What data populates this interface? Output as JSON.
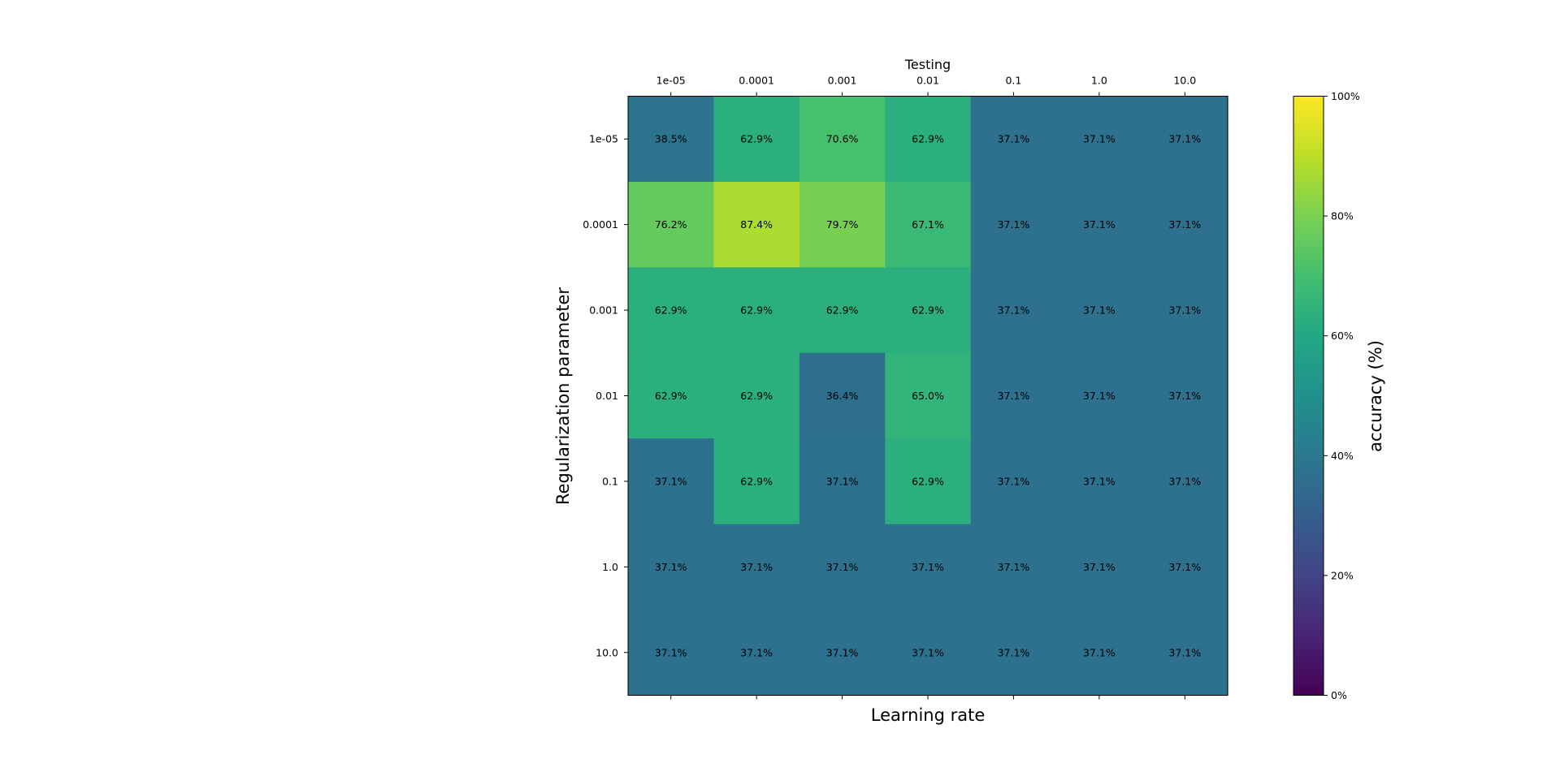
{
  "chart_data": {
    "type": "heatmap",
    "title": "Testing",
    "xlabel": "Learning rate",
    "ylabel": "Regularization parameter",
    "x_categories": [
      "1e-05",
      "0.0001",
      "0.001",
      "0.01",
      "0.1",
      "1.0",
      "10.0"
    ],
    "y_categories": [
      "1e-05",
      "0.0001",
      "0.001",
      "0.01",
      "0.1",
      "1.0",
      "10.0"
    ],
    "values": [
      [
        38.5,
        62.9,
        70.6,
        62.9,
        37.1,
        37.1,
        37.1
      ],
      [
        76.2,
        87.4,
        79.7,
        67.1,
        37.1,
        37.1,
        37.1
      ],
      [
        62.9,
        62.9,
        62.9,
        62.9,
        37.1,
        37.1,
        37.1
      ],
      [
        62.9,
        62.9,
        36.4,
        65.0,
        37.1,
        37.1,
        37.1
      ],
      [
        37.1,
        62.9,
        37.1,
        62.9,
        37.1,
        37.1,
        37.1
      ],
      [
        37.1,
        37.1,
        37.1,
        37.1,
        37.1,
        37.1,
        37.1
      ],
      [
        37.1,
        37.1,
        37.1,
        37.1,
        37.1,
        37.1,
        37.1
      ]
    ],
    "value_labels": [
      [
        "38.5%",
        "62.9%",
        "70.6%",
        "62.9%",
        "37.1%",
        "37.1%",
        "37.1%"
      ],
      [
        "76.2%",
        "87.4%",
        "79.7%",
        "67.1%",
        "37.1%",
        "37.1%",
        "37.1%"
      ],
      [
        "62.9%",
        "62.9%",
        "62.9%",
        "62.9%",
        "37.1%",
        "37.1%",
        "37.1%"
      ],
      [
        "62.9%",
        "62.9%",
        "36.4%",
        "65.0%",
        "37.1%",
        "37.1%",
        "37.1%"
      ],
      [
        "37.1%",
        "62.9%",
        "37.1%",
        "62.9%",
        "37.1%",
        "37.1%",
        "37.1%"
      ],
      [
        "37.1%",
        "37.1%",
        "37.1%",
        "37.1%",
        "37.1%",
        "37.1%",
        "37.1%"
      ],
      [
        "37.1%",
        "37.1%",
        "37.1%",
        "37.1%",
        "37.1%",
        "37.1%",
        "37.1%"
      ]
    ],
    "colormap": "viridis",
    "value_range": [
      0,
      100
    ],
    "colorbar": {
      "label": "accuracy (%)",
      "ticks": [
        0,
        20,
        40,
        60,
        80,
        100
      ],
      "tick_labels": [
        "0%",
        "20%",
        "40%",
        "60%",
        "80%",
        "100%"
      ]
    },
    "x_tick_position": "top",
    "grid": false
  }
}
